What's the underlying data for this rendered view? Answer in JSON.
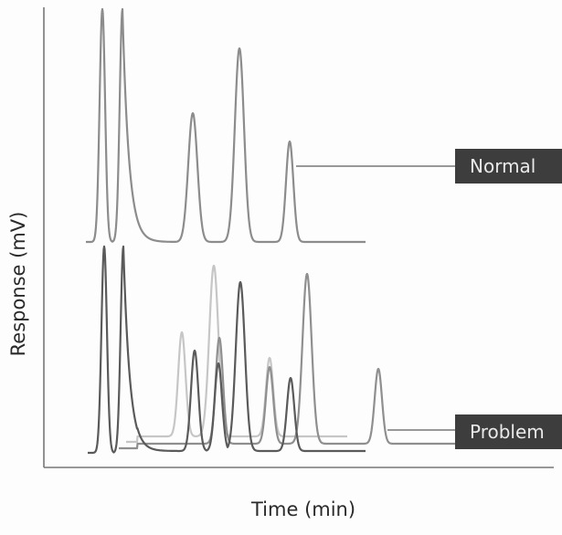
{
  "chart_data": {
    "type": "line",
    "title": "",
    "xlabel": "Time (min)",
    "ylabel": "Response (mV)",
    "x_tick_labels": [],
    "y_tick_labels": [],
    "grid": false,
    "legend": "right-side tag labels",
    "traces": [
      {
        "label": "Normal",
        "tag_color": "#3d3d3d",
        "line_color": "#8c8c8c",
        "peaks_relative_height": [
          1.0,
          1.0,
          0.55,
          0.8,
          0.43
        ]
      },
      {
        "label": "Problem",
        "tag_color": "#3d3d3d",
        "overlaid_runs": [
          {
            "line_color": "#5a5a5a",
            "peaks_relative_height": [
              1.0,
              1.0,
              0.5,
              0.43,
              0.8,
              0.33
            ]
          },
          {
            "line_color": "#8f8f8f",
            "peaks_relative_height": [
              0.55,
              0.33,
              0.8,
              0.53
            ]
          },
          {
            "line_color": "#c6c6c6",
            "peaks_relative_height": [
              0.56,
              0.87,
              0.4
            ]
          }
        ]
      }
    ]
  },
  "labels": {
    "x_axis": "Time (min)",
    "y_axis": "Response (mV)",
    "normal_tag": "Normal",
    "problem_tag": "Problem"
  },
  "colors": {
    "axis": "#777777",
    "tag_background": "#3d3d3d",
    "tag_text": "#e9e9e9",
    "connector": "#777777"
  }
}
